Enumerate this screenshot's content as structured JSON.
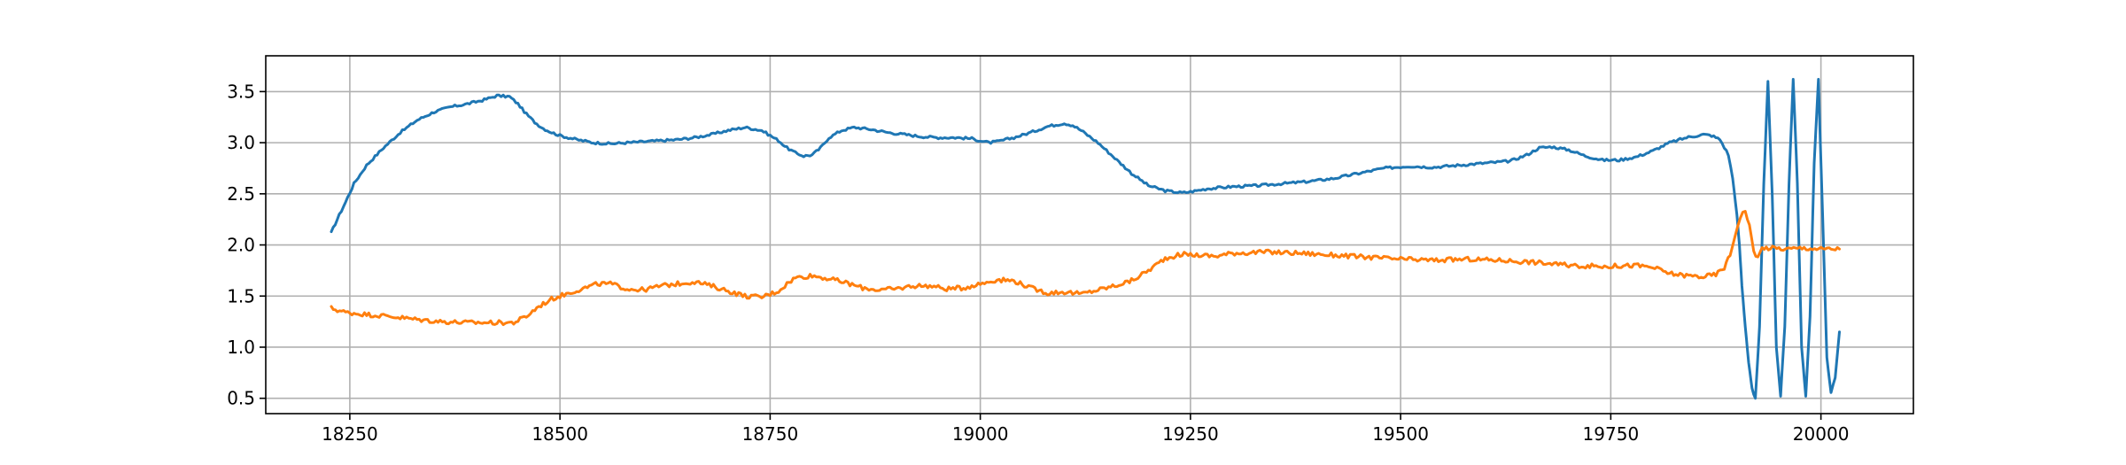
{
  "chart_data": {
    "type": "line",
    "title": "",
    "xlabel": "",
    "ylabel": "",
    "xlim": [
      18150,
      20110
    ],
    "ylim": [
      0.35,
      3.85
    ],
    "grid": true,
    "legend": "none",
    "xticks": [
      18250,
      18500,
      18750,
      19000,
      19250,
      19500,
      19750,
      20000
    ],
    "xtick_labels": [
      "18250",
      "18500",
      "18750",
      "19000",
      "19250",
      "19500",
      "19750",
      "20000"
    ],
    "yticks": [
      0.5,
      1.0,
      1.5,
      2.0,
      2.5,
      3.0,
      3.5
    ],
    "ytick_labels": [
      "0.5",
      "1.0",
      "1.5",
      "2.0",
      "2.5",
      "3.0",
      "3.5"
    ],
    "series": [
      {
        "color": "#1f77b4",
        "x": [
          18228,
          18235,
          18245,
          18255,
          18270,
          18290,
          18310,
          18330,
          18350,
          18370,
          18390,
          18410,
          18425,
          18440,
          18450,
          18460,
          18470,
          18480,
          18490,
          18500,
          18520,
          18540,
          18560,
          18580,
          18600,
          18620,
          18640,
          18660,
          18680,
          18700,
          18720,
          18740,
          18760,
          18770,
          18780,
          18790,
          18800,
          18810,
          18820,
          18835,
          18850,
          18870,
          18890,
          18910,
          18930,
          18950,
          18970,
          18990,
          19000,
          19010,
          19020,
          19040,
          19060,
          19080,
          19100,
          19110,
          19120,
          19140,
          19160,
          19180,
          19200,
          19220,
          19240,
          19250,
          19270,
          19300,
          19330,
          19360,
          19390,
          19420,
          19450,
          19480,
          19510,
          19540,
          19570,
          19600,
          19630,
          19650,
          19665,
          19680,
          19700,
          19720,
          19740,
          19760,
          19780,
          19800,
          19820,
          19840,
          19860,
          19870,
          19880,
          19890,
          19895,
          19900,
          19903,
          19906,
          19910,
          19914,
          19918,
          19922,
          19927,
          19932,
          19937,
          19942,
          19947,
          19952,
          19957,
          19962,
          19967,
          19972,
          19977,
          19982,
          19987,
          19992,
          19997,
          20002,
          20007,
          20012,
          20017,
          20022
        ],
        "y": [
          2.12,
          2.25,
          2.42,
          2.6,
          2.78,
          2.95,
          3.1,
          3.22,
          3.3,
          3.35,
          3.38,
          3.42,
          3.46,
          3.45,
          3.38,
          3.28,
          3.2,
          3.14,
          3.1,
          3.07,
          3.03,
          3.0,
          2.99,
          3.0,
          3.01,
          3.02,
          3.03,
          3.05,
          3.08,
          3.12,
          3.15,
          3.12,
          3.02,
          2.95,
          2.9,
          2.87,
          2.88,
          2.95,
          3.05,
          3.12,
          3.15,
          3.13,
          3.1,
          3.08,
          3.06,
          3.05,
          3.05,
          3.04,
          3.02,
          3.0,
          3.01,
          3.05,
          3.1,
          3.16,
          3.19,
          3.17,
          3.12,
          3.0,
          2.85,
          2.7,
          2.58,
          2.53,
          2.51,
          2.52,
          2.55,
          2.57,
          2.58,
          2.6,
          2.62,
          2.65,
          2.7,
          2.75,
          2.77,
          2.76,
          2.78,
          2.8,
          2.82,
          2.88,
          2.95,
          2.96,
          2.93,
          2.87,
          2.83,
          2.83,
          2.86,
          2.92,
          3.0,
          3.05,
          3.08,
          3.07,
          3.03,
          2.88,
          2.65,
          2.3,
          2.0,
          1.6,
          1.2,
          0.85,
          0.6,
          0.5,
          1.2,
          2.6,
          3.6,
          2.5,
          1.0,
          0.52,
          1.2,
          2.6,
          3.62,
          2.6,
          1.0,
          0.52,
          1.3,
          2.8,
          3.62,
          2.3,
          0.9,
          0.55,
          0.7,
          1.15
        ]
      },
      {
        "color": "#ff7f0e",
        "x": [
          18228,
          18245,
          18270,
          18300,
          18330,
          18360,
          18390,
          18420,
          18445,
          18460,
          18475,
          18490,
          18510,
          18530,
          18545,
          18560,
          18580,
          18600,
          18620,
          18640,
          18660,
          18680,
          18700,
          18720,
          18740,
          18760,
          18770,
          18780,
          18800,
          18820,
          18840,
          18860,
          18880,
          18900,
          18920,
          18940,
          18960,
          18980,
          19000,
          19020,
          19040,
          19060,
          19080,
          19100,
          19120,
          19140,
          19160,
          19180,
          19200,
          19220,
          19240,
          19260,
          19280,
          19300,
          19340,
          19380,
          19420,
          19460,
          19500,
          19540,
          19580,
          19620,
          19660,
          19700,
          19740,
          19780,
          19800,
          19820,
          19840,
          19860,
          19875,
          19885,
          19892,
          19898,
          19904,
          19910,
          19915,
          19920,
          19925,
          19930,
          19940,
          19960,
          19980,
          20000,
          20022
        ],
        "y": [
          1.38,
          1.34,
          1.32,
          1.3,
          1.27,
          1.25,
          1.24,
          1.24,
          1.24,
          1.3,
          1.4,
          1.47,
          1.53,
          1.58,
          1.62,
          1.62,
          1.57,
          1.56,
          1.6,
          1.62,
          1.64,
          1.6,
          1.55,
          1.5,
          1.49,
          1.55,
          1.62,
          1.68,
          1.7,
          1.67,
          1.63,
          1.58,
          1.56,
          1.57,
          1.6,
          1.6,
          1.57,
          1.58,
          1.62,
          1.66,
          1.65,
          1.58,
          1.53,
          1.54,
          1.52,
          1.56,
          1.6,
          1.65,
          1.75,
          1.87,
          1.91,
          1.9,
          1.89,
          1.92,
          1.93,
          1.92,
          1.9,
          1.88,
          1.86,
          1.85,
          1.86,
          1.85,
          1.83,
          1.8,
          1.79,
          1.8,
          1.78,
          1.72,
          1.7,
          1.69,
          1.71,
          1.78,
          1.9,
          2.1,
          2.28,
          2.34,
          2.18,
          1.95,
          1.87,
          1.97,
          1.97,
          1.96,
          1.97,
          1.96,
          1.96
        ]
      }
    ]
  }
}
